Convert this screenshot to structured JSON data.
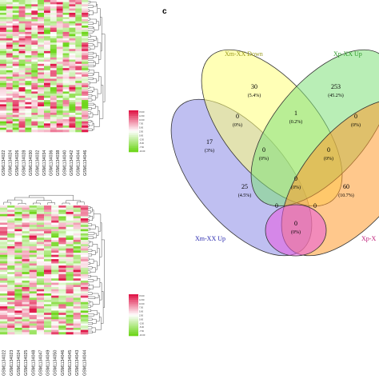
{
  "panel_label": "c",
  "colors": {
    "heat_high": "#e0184a",
    "heat_mid": "#ffffff",
    "heat_low": "#6fd61c",
    "set_xm_xx_up": "#8a8ae6",
    "set_xm_xx_down": "#ffff7a",
    "set_xp_xx_up": "#7fe07a",
    "set_xp_xx_down": "#ff9a2e",
    "set_extra": "#e85ae0"
  },
  "heatmap_top": {
    "sample_labels": [
      "GSM1134022",
      "GSM1134024",
      "GSM1134026",
      "GSM1134028",
      "GSM1134030",
      "GSM1134032",
      "GSM1134034",
      "GSM1134036",
      "GSM1134038",
      "GSM1134040",
      "GSM1134042",
      "GSM1134044",
      "GSM1134046"
    ],
    "scale_labels": [
      "15.00",
      "12.50",
      "10.00",
      "7.50",
      "5.00",
      "2.50",
      "0.00",
      "-2.50",
      "-5.00",
      "-7.50",
      "-10.00"
    ]
  },
  "heatmap_bottom": {
    "sample_labels": [
      "GSM1134022",
      "GSM1134023",
      "GSM1134024",
      "GSM1134025",
      "GSM1134048",
      "GSM1134047",
      "GSM1134049",
      "GSM1134050",
      "GSM1134046",
      "GSM1134045",
      "GSM1134043",
      "GSM1134044"
    ],
    "scale_labels": [
      "15.00",
      "12.50",
      "10.00",
      "7.50",
      "5.00",
      "2.50",
      "0.00",
      "-2.50",
      "-5.00",
      "-7.50",
      "-10.00"
    ]
  },
  "venn": {
    "set_labels": {
      "xm_xx_down": "Xm-XX Down",
      "xp_xx_up": "Xp-XX Up",
      "xm_xx_up": "Xm-XX Up",
      "xp_xx_down": "Xp-X"
    },
    "regions": {
      "only_xm_down": {
        "count": "30",
        "pct": "(5.4%)"
      },
      "only_xp_up": {
        "count": "253",
        "pct": "(45.2%)"
      },
      "only_xm_up": {
        "count": "17",
        "pct": "(3%)"
      },
      "xm_down_xp_up": {
        "count": "1",
        "pct": "(0.2%)"
      },
      "xm_up_xm_down": {
        "count": "0",
        "pct": "(0%)"
      },
      "xp_up_xp_down": {
        "count": "0",
        "pct": "(0%)"
      },
      "center_left": {
        "count": "0",
        "pct": "(0%)"
      },
      "center_right": {
        "count": "0",
        "pct": "(0%)"
      },
      "center": {
        "count": "0",
        "pct": "(0%)"
      },
      "xm_up_xp_up": {
        "count": "25",
        "pct": "(4.5%)"
      },
      "xp_down_xm_down": {
        "count": "60",
        "pct": "(10.7%)"
      },
      "lower_left": {
        "count": "0",
        "pct": ""
      },
      "lower_right": {
        "count": "0",
        "pct": ""
      },
      "bottom": {
        "count": "0",
        "pct": "(0%)"
      }
    }
  }
}
